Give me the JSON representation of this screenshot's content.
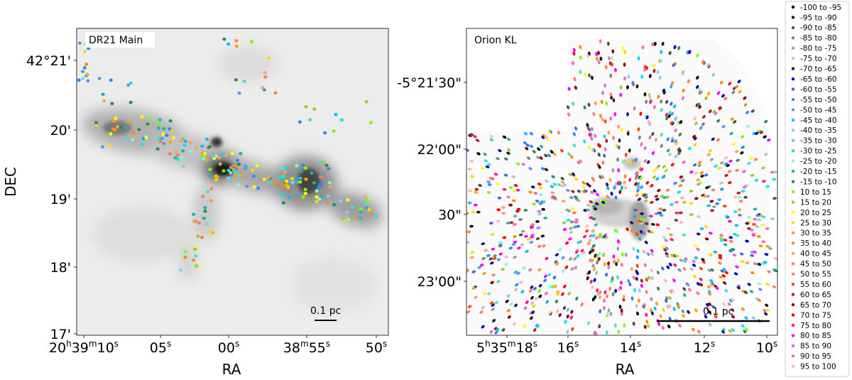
{
  "chart_data": [
    {
      "type": "scatter",
      "panel_label": "DR21 Main",
      "xlabel": "RA",
      "ylabel": "DEC",
      "x_tick_labels": [
        {
          "text": "20",
          "sup": "h",
          "text2": "39",
          "sup2": "m",
          "text3": "10",
          "sup3": "s"
        },
        {
          "text": "05",
          "sup": "s"
        },
        {
          "text": "00",
          "sup": "s"
        },
        {
          "text": "38",
          "sup": "m",
          "text2": "55",
          "sup2": "s"
        },
        {
          "text": "50",
          "sup": "s"
        }
      ],
      "y_tick_labels": [
        "42°21'",
        "20'",
        "19'",
        "18'",
        "17'"
      ],
      "scale_bar": "0.1 pc",
      "background": "grayscale dust continuum map",
      "series_note": "points colored by velocity bin (km/s) as in legend"
    },
    {
      "type": "scatter",
      "panel_label": "Orion KL",
      "xlabel": "RA",
      "x_tick_labels": [
        {
          "text": "5",
          "sup": "h",
          "text2": "35",
          "sup2": "m",
          "text3": "18",
          "sup3": "s"
        },
        {
          "text": "16",
          "sup": "s"
        },
        {
          "text": "14",
          "sup": "s"
        },
        {
          "text": "12",
          "sup": "s"
        },
        {
          "text": "10",
          "sup": "s"
        }
      ],
      "y_tick_labels": [
        "-5°21'30\"",
        "22'00\"",
        "30\"",
        "23'00\""
      ],
      "scale_bar": "0.1 pc",
      "background": "grayscale continuum map",
      "series_note": "points colored by velocity bin (km/s) as in legend"
    }
  ],
  "legend": [
    {
      "label": "-100 to -95",
      "color": "#000000"
    },
    {
      "label": "-95 to -90",
      "color": "#1a1a1a"
    },
    {
      "label": "-90 to -85",
      "color": "#4d4d4d"
    },
    {
      "label": "-85 to -80",
      "color": "#808080"
    },
    {
      "label": "-80 to -75",
      "color": "#9e9e9e"
    },
    {
      "label": "-75 to -70",
      "color": "#c0c0c0"
    },
    {
      "label": "-70 to -65",
      "color": "#191970"
    },
    {
      "label": "-65 to -60",
      "color": "#0000cd"
    },
    {
      "label": "-60 to -55",
      "color": "#4169e1"
    },
    {
      "label": "-55 to -50",
      "color": "#1e90ff"
    },
    {
      "label": "-50 to -45",
      "color": "#6495ed"
    },
    {
      "label": "-45 to -40",
      "color": "#00bfff"
    },
    {
      "label": "-40 to -35",
      "color": "#87ceeb"
    },
    {
      "label": "-35 to -30",
      "color": "#40e0d0"
    },
    {
      "label": "-30 to -25",
      "color": "#00e5ee"
    },
    {
      "label": "-25 to -20",
      "color": "#7fffd4"
    },
    {
      "label": "-20 to -15",
      "color": "#20b2aa"
    },
    {
      "label": "-15 to -10",
      "color": "#2e8b57"
    },
    {
      "label": "10 to 15",
      "color": "#7cfc00"
    },
    {
      "label": "15 to 20",
      "color": "#9acd32"
    },
    {
      "label": "20 to 25",
      "color": "#ffff00"
    },
    {
      "label": "25 to 30",
      "color": "#ffd700"
    },
    {
      "label": "30 to 35",
      "color": "#ffa500"
    },
    {
      "label": "35 to 40",
      "color": "#ff8c00"
    },
    {
      "label": "40 to 45",
      "color": "#f4a460"
    },
    {
      "label": "45 to 50",
      "color": "#ff7f50"
    },
    {
      "label": "50 to 55",
      "color": "#fa8072"
    },
    {
      "label": "55 to 60",
      "color": "#ff4500"
    },
    {
      "label": "60 to 65",
      "color": "#b22222"
    },
    {
      "label": "65 to 70",
      "color": "#8b0000"
    },
    {
      "label": "70 to 75",
      "color": "#ff0000"
    },
    {
      "label": "75 to 80",
      "color": "#ff1493"
    },
    {
      "label": "80 to 85",
      "color": "#ff00ff"
    },
    {
      "label": "85 to 90",
      "color": "#da70d6"
    },
    {
      "label": "90 to 95",
      "color": "#ff69b4"
    },
    {
      "label": "95 to 100",
      "color": "#ffb6c1"
    }
  ]
}
